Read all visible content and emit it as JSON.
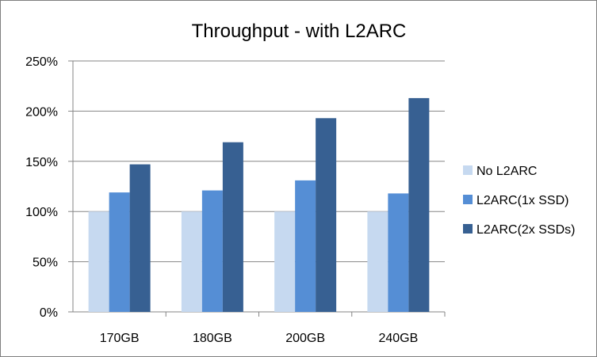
{
  "chart_data": {
    "type": "bar",
    "title": "Throughput - with L2ARC",
    "xlabel": "",
    "ylabel": "",
    "categories": [
      "170GB",
      "180GB",
      "200GB",
      "240GB"
    ],
    "series": [
      {
        "name": "No L2ARC",
        "values": [
          100,
          100,
          100,
          100
        ],
        "color": "#c6d9f0"
      },
      {
        "name": "L2ARC(1x SSD)",
        "values": [
          119,
          121,
          131,
          118
        ],
        "color": "#558ed5"
      },
      {
        "name": "L2ARC(2x SSDs)",
        "values": [
          147,
          169,
          193,
          213
        ],
        "color": "#376092"
      }
    ],
    "ylim": [
      0,
      250
    ],
    "ytick_step": 50,
    "ytick_labels": [
      "0%",
      "50%",
      "100%",
      "150%",
      "200%",
      "250%"
    ],
    "grid": true,
    "legend_position": "right"
  }
}
